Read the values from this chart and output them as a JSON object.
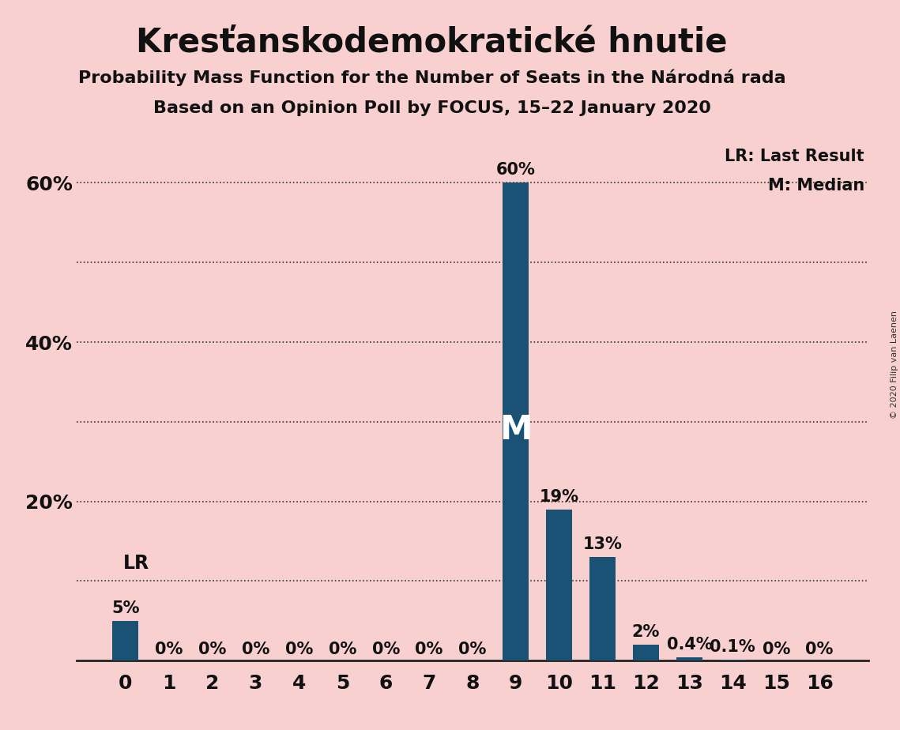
{
  "title": "Kresťanskodemokratické hnutie",
  "subtitle1": "Probability Mass Function for the Number of Seats in the Národná rada",
  "subtitle2": "Based on an Opinion Poll by FOCUS, 15–22 January 2020",
  "copyright": "© 2020 Filip van Laenen",
  "categories": [
    0,
    1,
    2,
    3,
    4,
    5,
    6,
    7,
    8,
    9,
    10,
    11,
    12,
    13,
    14,
    15,
    16
  ],
  "values": [
    5,
    0,
    0,
    0,
    0,
    0,
    0,
    0,
    0,
    60,
    19,
    13,
    2,
    0.4,
    0.1,
    0,
    0
  ],
  "labels": [
    "5%",
    "0%",
    "0%",
    "0%",
    "0%",
    "0%",
    "0%",
    "0%",
    "0%",
    "60%",
    "19%",
    "13%",
    "2%",
    "0.4%",
    "0.1%",
    "0%",
    "0%"
  ],
  "bar_color": "#1a5276",
  "background_color": "#f9d0d0",
  "median_bar": 9,
  "last_result_bar": 0,
  "ylim": [
    0,
    66
  ],
  "yticks_labels": [
    0,
    20,
    40,
    60
  ],
  "ytick_label_strs": [
    "",
    "20%",
    "40%",
    "60%"
  ],
  "yticks_grid": [
    10,
    20,
    30,
    40,
    50,
    60
  ],
  "grid_color": "#333333",
  "title_fontsize": 30,
  "subtitle_fontsize": 16,
  "annotation_fontsize": 15,
  "tick_fontsize": 18,
  "median_label_fontsize": 30,
  "lr_fontsize": 17
}
